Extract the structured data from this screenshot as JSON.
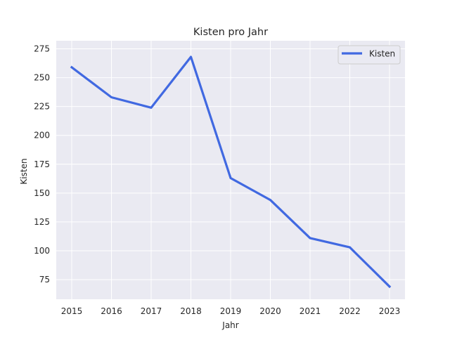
{
  "chart_data": {
    "type": "line",
    "title": "Kisten pro Jahr",
    "xlabel": "Jahr",
    "ylabel": "Kisten",
    "x": [
      "2015",
      "2016",
      "2017",
      "2018",
      "2019",
      "2020",
      "2021",
      "2022",
      "2023"
    ],
    "yticks": [
      75,
      100,
      125,
      150,
      175,
      200,
      225,
      250,
      275
    ],
    "ylim": [
      58,
      282
    ],
    "series": [
      {
        "name": "Kisten",
        "color": "#4169e1",
        "values": [
          259,
          233,
          224,
          268,
          163,
          144,
          111,
          103,
          69
        ]
      }
    ],
    "legend": {
      "position": "top-right"
    },
    "grid": true,
    "style": {
      "background": "#eaeaf2",
      "grid_color": "#ffffff"
    }
  }
}
